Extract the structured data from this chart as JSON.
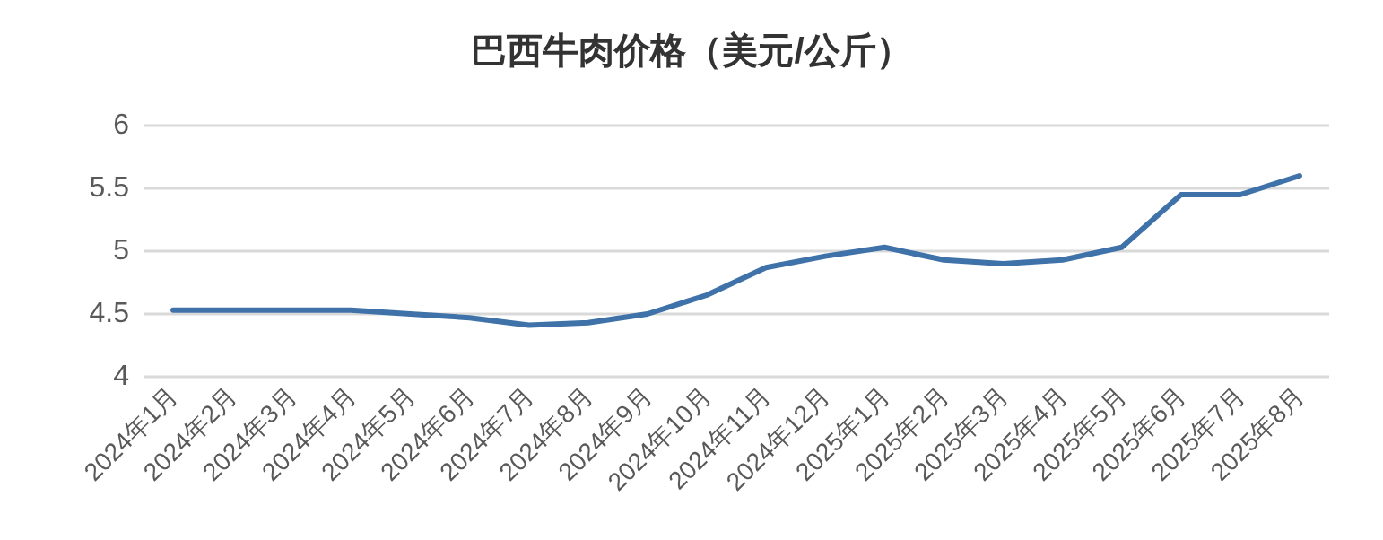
{
  "chart_data": {
    "type": "line",
    "title": "巴西牛肉价格（美元/公斤）",
    "categories": [
      "2024年1月",
      "2024年2月",
      "2024年3月",
      "2024年4月",
      "2024年5月",
      "2024年6月",
      "2024年7月",
      "2024年8月",
      "2024年9月",
      "2024年10月",
      "2024年11月",
      "2024年12月",
      "2025年1月",
      "2025年2月",
      "2025年3月",
      "2025年4月",
      "2025年5月",
      "2025年6月",
      "2025年7月",
      "2025年8月"
    ],
    "series": [
      {
        "color": "#3f72a8",
        "values": [
          4.53,
          4.53,
          4.53,
          4.53,
          4.5,
          4.47,
          4.41,
          4.43,
          4.5,
          4.65,
          4.87,
          4.96,
          5.03,
          4.93,
          4.9,
          4.93,
          5.03,
          5.45,
          5.45,
          5.6
        ]
      }
    ],
    "ylim": [
      4,
      6
    ],
    "yticks": [
      4,
      4.5,
      5,
      5.5,
      6
    ],
    "grid": "y",
    "marker": "none",
    "line_style": "solid"
  }
}
